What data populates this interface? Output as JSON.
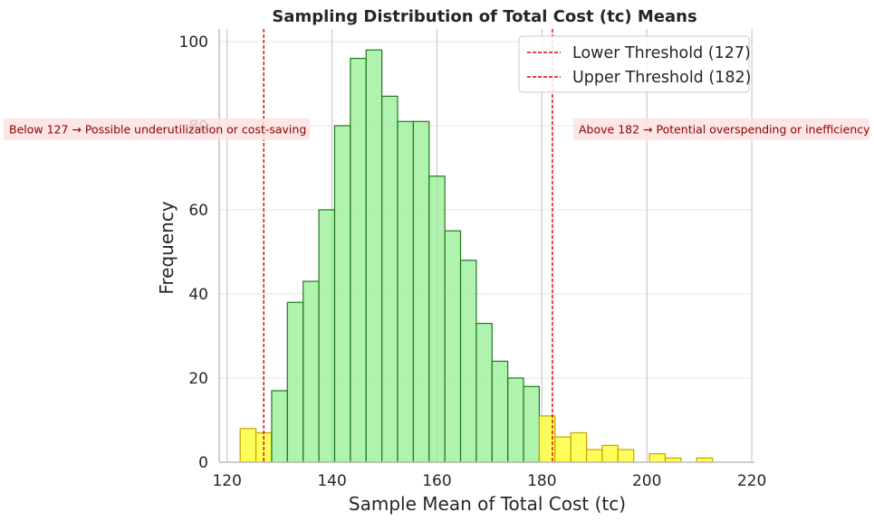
{
  "chart_data": {
    "type": "bar",
    "title": "Sampling Distribution of Total Cost (tc) Means",
    "xlabel": "Sample Mean of Total Cost (tc)",
    "ylabel": "Frequency",
    "xlim": [
      118.5,
      220.5
    ],
    "ylim": [
      0,
      103
    ],
    "xticks": [
      "120",
      "140",
      "160",
      "180",
      "200",
      "220"
    ],
    "yticks": [
      "0",
      "20",
      "40",
      "60",
      "80",
      "100"
    ],
    "grid": true,
    "bin_width": 3.0,
    "bins": [
      {
        "start": 122.5,
        "count": 8,
        "group": "outside"
      },
      {
        "start": 125.5,
        "count": 7,
        "group": "outside"
      },
      {
        "start": 128.5,
        "count": 17,
        "group": "inside"
      },
      {
        "start": 131.5,
        "count": 38,
        "group": "inside"
      },
      {
        "start": 134.5,
        "count": 43,
        "group": "inside"
      },
      {
        "start": 137.5,
        "count": 60,
        "group": "inside"
      },
      {
        "start": 140.5,
        "count": 80,
        "group": "inside"
      },
      {
        "start": 143.5,
        "count": 96,
        "group": "inside"
      },
      {
        "start": 146.5,
        "count": 98,
        "group": "inside"
      },
      {
        "start": 149.5,
        "count": 87,
        "group": "inside"
      },
      {
        "start": 152.5,
        "count": 81,
        "group": "inside"
      },
      {
        "start": 155.5,
        "count": 81,
        "group": "inside"
      },
      {
        "start": 158.5,
        "count": 68,
        "group": "inside"
      },
      {
        "start": 161.5,
        "count": 55,
        "group": "inside"
      },
      {
        "start": 164.5,
        "count": 48,
        "group": "inside"
      },
      {
        "start": 167.5,
        "count": 33,
        "group": "inside"
      },
      {
        "start": 170.5,
        "count": 24,
        "group": "inside"
      },
      {
        "start": 173.5,
        "count": 20,
        "group": "inside"
      },
      {
        "start": 176.5,
        "count": 18,
        "group": "inside"
      },
      {
        "start": 179.5,
        "count": 11,
        "group": "outside"
      },
      {
        "start": 182.5,
        "count": 6,
        "group": "outside"
      },
      {
        "start": 185.5,
        "count": 7,
        "group": "outside"
      },
      {
        "start": 188.5,
        "count": 3,
        "group": "outside"
      },
      {
        "start": 191.5,
        "count": 4,
        "group": "outside"
      },
      {
        "start": 194.5,
        "count": 3,
        "group": "outside"
      },
      {
        "start": 197.5,
        "count": 0,
        "group": "outside"
      },
      {
        "start": 200.5,
        "count": 2,
        "group": "outside"
      },
      {
        "start": 203.5,
        "count": 1,
        "group": "outside"
      },
      {
        "start": 206.5,
        "count": 0,
        "group": "outside"
      },
      {
        "start": 209.5,
        "count": 1,
        "group": "outside"
      }
    ],
    "thresholds": [
      {
        "value": 127,
        "label": "Lower Threshold (127)"
      },
      {
        "value": 182,
        "label": "Upper Threshold (182)"
      }
    ],
    "legend_position": "top-right",
    "annotations": [
      {
        "text": "Below 127 → Possible underutilization or cost-saving"
      },
      {
        "text": "Above 182 → Potential overspending or inefficiency"
      }
    ]
  },
  "colors": {
    "inside_fill": "#90ee90",
    "inside_stroke": "#1f7a1f",
    "outside_fill": "#ffff33",
    "outside_stroke": "#c8a000",
    "threshold_line": "#e00000",
    "annotation_bg": "#fde2e2",
    "annotation_text": "#8b0000",
    "axis": "#bdbdbd",
    "grid": "#e6e6e6",
    "text": "#262626"
  }
}
